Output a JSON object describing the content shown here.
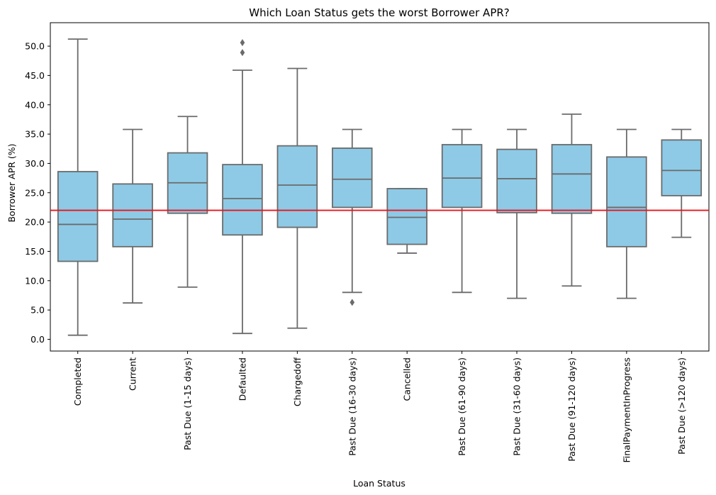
{
  "chart_data": {
    "type": "box",
    "title": "Which Loan Status gets the worst Borrower APR?",
    "xlabel": "Loan Status",
    "ylabel": "Borrower APR (%)",
    "ylim": [
      -2,
      54
    ],
    "yticks": [
      0.0,
      5.0,
      10.0,
      15.0,
      20.0,
      25.0,
      30.0,
      35.0,
      40.0,
      45.0,
      50.0
    ],
    "ytick_labels": [
      "0.0",
      "5.0",
      "10.0",
      "15.0",
      "20.0",
      "25.0",
      "30.0",
      "35.0",
      "40.0",
      "45.0",
      "50.0"
    ],
    "box_color": "#8ecae6",
    "line_color": "#6b6b6b",
    "reference_line": {
      "y": 22.0,
      "color": "#e8141c"
    },
    "categories": [
      "Completed",
      "Current",
      "Past Due (1-15 days)",
      "Defaulted",
      "Chargedoff",
      "Past Due (16-30 days)",
      "Cancelled",
      "Past Due (61-90 days)",
      "Past Due (31-60 days)",
      "Past Due (91-120 days)",
      "FinalPaymentInProgress",
      "Past Due (>120 days)"
    ],
    "boxes": [
      {
        "whislo": 0.7,
        "q1": 13.3,
        "med": 19.6,
        "q3": 28.6,
        "whishi": 51.2,
        "fliers": []
      },
      {
        "whislo": 6.2,
        "q1": 15.8,
        "med": 20.5,
        "q3": 26.5,
        "whishi": 35.8,
        "fliers": []
      },
      {
        "whislo": 8.9,
        "q1": 21.5,
        "med": 26.7,
        "q3": 31.8,
        "whishi": 38.0,
        "fliers": []
      },
      {
        "whislo": 1.0,
        "q1": 17.8,
        "med": 24.0,
        "q3": 29.8,
        "whishi": 45.9,
        "fliers": [
          48.9,
          50.6
        ]
      },
      {
        "whislo": 1.9,
        "q1": 19.1,
        "med": 26.3,
        "q3": 33.0,
        "whishi": 46.2,
        "fliers": []
      },
      {
        "whislo": 8.0,
        "q1": 22.5,
        "med": 27.3,
        "q3": 32.6,
        "whishi": 35.8,
        "fliers": [
          6.3
        ]
      },
      {
        "whislo": 14.7,
        "q1": 16.2,
        "med": 20.8,
        "q3": 25.7,
        "whishi": 25.7,
        "fliers": []
      },
      {
        "whislo": 8.0,
        "q1": 22.5,
        "med": 27.5,
        "q3": 33.2,
        "whishi": 35.8,
        "fliers": []
      },
      {
        "whislo": 7.0,
        "q1": 21.6,
        "med": 27.4,
        "q3": 32.4,
        "whishi": 35.8,
        "fliers": []
      },
      {
        "whislo": 9.1,
        "q1": 21.5,
        "med": 28.2,
        "q3": 33.2,
        "whishi": 38.4,
        "fliers": []
      },
      {
        "whislo": 7.0,
        "q1": 15.8,
        "med": 22.5,
        "q3": 31.1,
        "whishi": 35.8,
        "fliers": []
      },
      {
        "whislo": 17.4,
        "q1": 24.5,
        "med": 28.8,
        "q3": 34.0,
        "whishi": 35.8,
        "fliers": []
      }
    ]
  }
}
